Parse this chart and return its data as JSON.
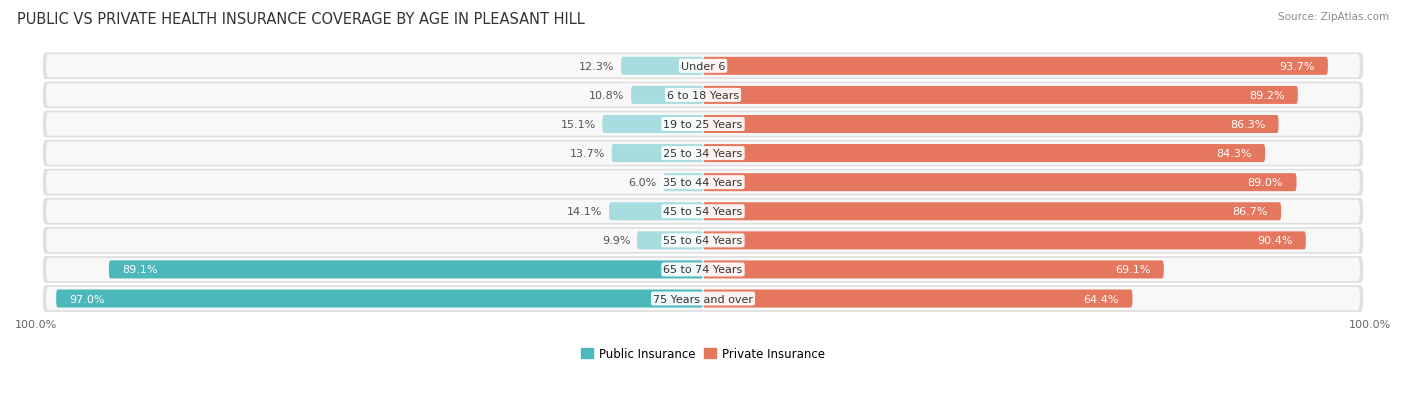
{
  "title": "PUBLIC VS PRIVATE HEALTH INSURANCE COVERAGE BY AGE IN PLEASANT HILL",
  "source": "Source: ZipAtlas.com",
  "categories": [
    "Under 6",
    "6 to 18 Years",
    "19 to 25 Years",
    "25 to 34 Years",
    "35 to 44 Years",
    "45 to 54 Years",
    "55 to 64 Years",
    "65 to 74 Years",
    "75 Years and over"
  ],
  "public_values": [
    12.3,
    10.8,
    15.1,
    13.7,
    6.0,
    14.1,
    9.9,
    89.1,
    97.0
  ],
  "private_values": [
    93.7,
    89.2,
    86.3,
    84.3,
    89.0,
    86.7,
    90.4,
    69.1,
    64.4
  ],
  "public_color_strong": "#4db8bb",
  "public_color_light": "#a8dde0",
  "private_color_strong": "#e5775f",
  "private_color_light": "#f0b4a4",
  "row_bg_outer_1": "#e8e8e8",
  "row_bg_outer_2": "#d8d8d8",
  "row_bg_inner": "#f7f7f7",
  "title_fontsize": 10.5,
  "label_fontsize": 8.0,
  "tick_fontsize": 8.0,
  "legend_fontsize": 8.5,
  "source_fontsize": 7.5
}
